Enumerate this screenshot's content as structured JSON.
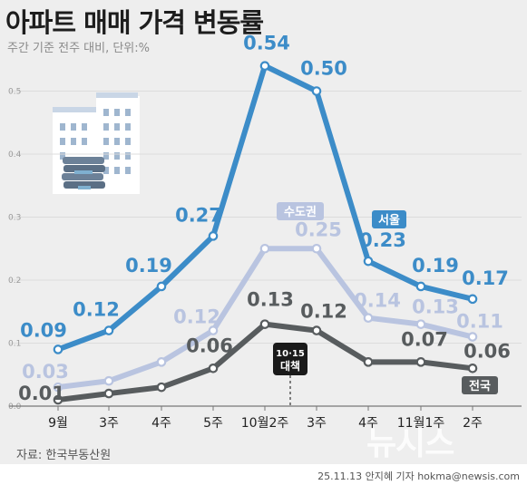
{
  "title": "아파트 매매 가격 변동률",
  "subtitle": "주간 기준 전주 대비, 단위:%",
  "source": "자료: 한국부동산원",
  "credit": "25.11.13 안지혜 기자 hokma@newsis.com",
  "watermark": "뉴시스",
  "colors": {
    "seoul": "#3c8cc8",
    "capital": "#b9c4e0",
    "national": "#585c5e",
    "panel": "#eeeeee"
  },
  "chart_data": {
    "type": "line",
    "categories": [
      "9월",
      "3주",
      "4주",
      "5주",
      "10월2주",
      "3주",
      "4주",
      "11월1주",
      "2주"
    ],
    "y_ticks": [
      "0.0",
      "0.1",
      "0.2",
      "0.3",
      "0.4",
      "0.5"
    ],
    "ylim": [
      0,
      0.6
    ],
    "series": [
      {
        "key": "seoul",
        "name": "서울",
        "values": [
          0.09,
          0.12,
          0.19,
          0.27,
          0.54,
          0.5,
          0.23,
          0.19,
          0.17
        ],
        "labels": [
          "0.09",
          "0.12",
          "0.19",
          "0.27",
          "0.54",
          "0.50",
          "0.23",
          "0.19",
          "0.17"
        ]
      },
      {
        "key": "capital",
        "name": "수도권",
        "values": [
          0.03,
          0.04,
          0.07,
          0.12,
          0.25,
          0.25,
          0.14,
          0.13,
          0.11
        ],
        "labels": [
          "0.03",
          "",
          "",
          "0.12",
          "",
          "0.25",
          "0.14",
          "0.13",
          "0.11"
        ]
      },
      {
        "key": "national",
        "name": "전국",
        "values": [
          0.01,
          0.02,
          0.03,
          0.06,
          0.13,
          0.12,
          0.07,
          0.07,
          0.06
        ],
        "labels": [
          "0.01",
          "",
          "",
          "0.06",
          "0.13",
          "0.12",
          "",
          "0.07",
          "0.06"
        ]
      }
    ],
    "annotation": {
      "line1": "10·15",
      "line2": "대책"
    }
  }
}
